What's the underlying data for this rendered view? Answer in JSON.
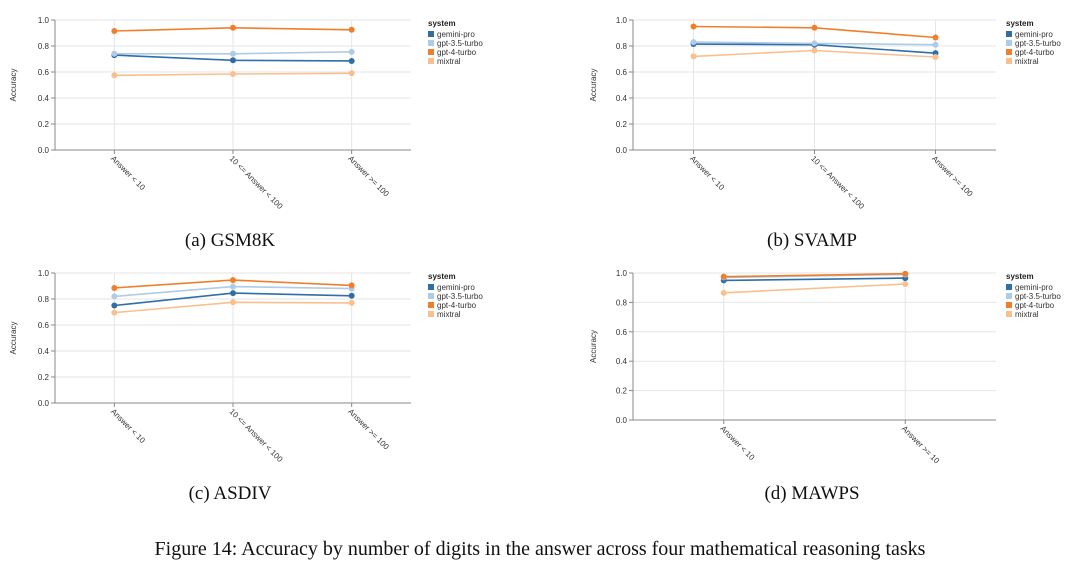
{
  "figure": {
    "caption": "Figure 14: Accuracy by number of digits in the answer across four mathematical reasoning tasks"
  },
  "legend": {
    "title": "system",
    "entries": [
      {
        "name": "gemini-pro",
        "color": "#2f6fa6"
      },
      {
        "name": "gpt-3.5-turbo",
        "color": "#aecbe8"
      },
      {
        "name": "gpt-4-turbo",
        "color": "#f07f2c"
      },
      {
        "name": "mixtral",
        "color": "#f8c08f"
      }
    ]
  },
  "chart_data": [
    {
      "type": "line",
      "title": "(a) GSM8K",
      "xlabel": "",
      "ylabel": "Accuracy",
      "ylim": [
        0,
        1
      ],
      "yticks": [
        "0.0",
        "0.2",
        "0.4",
        "0.6",
        "0.8",
        "1.0"
      ],
      "categories": [
        "Answer < 10",
        "10 <= Answer < 100",
        "Answer >= 100"
      ],
      "series": [
        {
          "name": "gemini-pro",
          "values": [
            0.73,
            0.69,
            0.685
          ]
        },
        {
          "name": "gpt-3.5-turbo",
          "values": [
            0.74,
            0.74,
            0.755
          ]
        },
        {
          "name": "gpt-4-turbo",
          "values": [
            0.915,
            0.94,
            0.925
          ]
        },
        {
          "name": "mixtral",
          "values": [
            0.575,
            0.585,
            0.59
          ]
        }
      ]
    },
    {
      "type": "line",
      "title": "(b) SVAMP",
      "xlabel": "",
      "ylabel": "Accuracy",
      "ylim": [
        0,
        1
      ],
      "yticks": [
        "0.0",
        "0.2",
        "0.4",
        "0.6",
        "0.8",
        "1.0"
      ],
      "categories": [
        "Answer < 10",
        "10 <= Answer < 100",
        "Answer >= 100"
      ],
      "series": [
        {
          "name": "gemini-pro",
          "values": [
            0.815,
            0.81,
            0.745
          ]
        },
        {
          "name": "gpt-3.5-turbo",
          "values": [
            0.83,
            0.82,
            0.81
          ]
        },
        {
          "name": "gpt-4-turbo",
          "values": [
            0.95,
            0.94,
            0.865
          ]
        },
        {
          "name": "mixtral",
          "values": [
            0.72,
            0.765,
            0.715
          ]
        }
      ]
    },
    {
      "type": "line",
      "title": "(c) ASDIV",
      "xlabel": "",
      "ylabel": "Accuracy",
      "ylim": [
        0,
        1
      ],
      "yticks": [
        "0.0",
        "0.2",
        "0.4",
        "0.6",
        "0.8",
        "1.0"
      ],
      "categories": [
        "Answer < 10",
        "10 <= Answer < 100",
        "Answer >= 100"
      ],
      "series": [
        {
          "name": "gemini-pro",
          "values": [
            0.75,
            0.845,
            0.825
          ]
        },
        {
          "name": "gpt-3.5-turbo",
          "values": [
            0.82,
            0.895,
            0.88
          ]
        },
        {
          "name": "gpt-4-turbo",
          "values": [
            0.885,
            0.945,
            0.905
          ]
        },
        {
          "name": "mixtral",
          "values": [
            0.695,
            0.775,
            0.77
          ]
        }
      ]
    },
    {
      "type": "line",
      "title": "(d) MAWPS",
      "xlabel": "",
      "ylabel": "Accuracy",
      "ylim": [
        0,
        1
      ],
      "yticks": [
        "0.0",
        "0.2",
        "0.4",
        "0.6",
        "0.8",
        "1.0"
      ],
      "categories": [
        "Answer < 10",
        "Answer >= 10"
      ],
      "series": [
        {
          "name": "gemini-pro",
          "values": [
            0.95,
            0.965
          ]
        },
        {
          "name": "gpt-3.5-turbo",
          "values": [
            0.97,
            0.99
          ]
        },
        {
          "name": "gpt-4-turbo",
          "values": [
            0.975,
            0.995
          ]
        },
        {
          "name": "mixtral",
          "values": [
            0.865,
            0.925
          ]
        }
      ]
    }
  ]
}
